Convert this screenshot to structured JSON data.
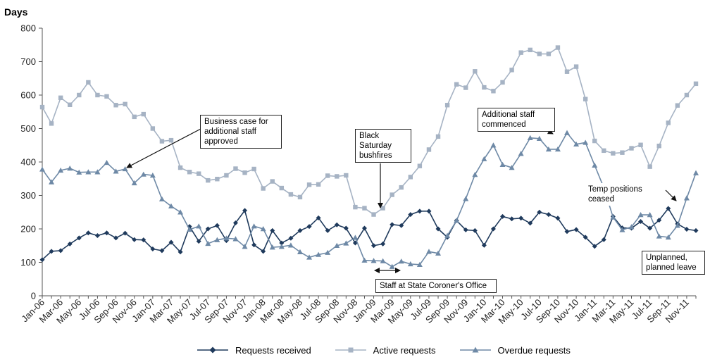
{
  "chart_data": {
    "type": "line",
    "ylabel": "Days",
    "ylim": [
      0,
      800
    ],
    "yticks": [
      0,
      100,
      200,
      300,
      400,
      500,
      600,
      700,
      800
    ],
    "x_tick_labels": [
      "Jan-06",
      "Mar-06",
      "May-06",
      "Jul-06",
      "Sep-06",
      "Nov-06",
      "Jan-07",
      "Mar-07",
      "May-07",
      "Jul-07",
      "Sep-07",
      "Nov-07",
      "Jan-08",
      "Mar-08",
      "May-08",
      "Jul-08",
      "Sep-08",
      "Nov-08",
      "Jan-09",
      "Mar-09",
      "May-09",
      "Jul-09",
      "Sep-09",
      "Nov-09",
      "Jan-10",
      "Mar-10",
      "May-10",
      "Jul-10",
      "Sep-10",
      "Nov-10",
      "Jan-11",
      "Mar-11",
      "May-11",
      "Jul-11",
      "Sep-11",
      "Nov-11"
    ],
    "x_period": "Monthly, Jan-06 to Dec-11",
    "series": [
      {
        "name": "Requests received",
        "color": "#1f3a5c",
        "marker": "diamond",
        "values": [
          108,
          133,
          135,
          155,
          173,
          188,
          180,
          188,
          173,
          187,
          168,
          167,
          140,
          135,
          160,
          131,
          207,
          163,
          200,
          210,
          165,
          218,
          255,
          152,
          133,
          195,
          158,
          172,
          195,
          207,
          233,
          195,
          212,
          202,
          158,
          202,
          150,
          155,
          213,
          210,
          243,
          253,
          253,
          200,
          175,
          225,
          197,
          195,
          151,
          200,
          237,
          230,
          232,
          217,
          250,
          243,
          232,
          192,
          198,
          175,
          148,
          168,
          237,
          203,
          202,
          222,
          202,
          226,
          261,
          215,
          199,
          195
        ]
      },
      {
        "name": "Active requests",
        "color": "#a6b3c4",
        "marker": "square",
        "values": [
          564,
          515,
          592,
          571,
          600,
          638,
          600,
          596,
          570,
          573,
          535,
          543,
          500,
          462,
          465,
          383,
          370,
          365,
          345,
          349,
          360,
          380,
          368,
          379,
          321,
          342,
          322,
          303,
          295,
          332,
          333,
          359,
          357,
          360,
          265,
          262,
          243,
          262,
          302,
          324,
          355,
          388,
          437,
          476,
          570,
          632,
          622,
          671,
          623,
          612,
          638,
          675,
          727,
          735,
          723,
          723,
          742,
          670,
          685,
          588,
          463,
          434,
          426,
          428,
          441,
          451,
          386,
          448,
          517,
          569,
          600,
          634
        ]
      },
      {
        "name": "Overdue requests",
        "color": "#6e89a6",
        "marker": "triangle",
        "values": [
          378,
          340,
          375,
          381,
          369,
          370,
          370,
          398,
          372,
          379,
          337,
          363,
          360,
          289,
          268,
          250,
          198,
          208,
          156,
          167,
          172,
          170,
          147,
          208,
          200,
          145,
          147,
          151,
          131,
          115,
          123,
          129,
          150,
          157,
          174,
          106,
          105,
          104,
          87,
          103,
          95,
          93,
          132,
          127,
          180,
          225,
          290,
          362,
          409,
          450,
          392,
          383,
          425,
          472,
          470,
          438,
          438,
          487,
          453,
          458,
          390,
          323,
          235,
          197,
          206,
          242,
          242,
          178,
          175,
          210,
          292,
          367
        ]
      }
    ],
    "annotations": [
      {
        "text": "Business case for\nadditional staff\napproved"
      },
      {
        "text": "Black\nSaturday\nbushfires"
      },
      {
        "text": "Additional staff\ncommenced"
      },
      {
        "text": "Temp positions\nceased"
      },
      {
        "text": "Staff at State Coroner's Office"
      },
      {
        "text": "Unplanned,\nplanned leave"
      }
    ]
  }
}
